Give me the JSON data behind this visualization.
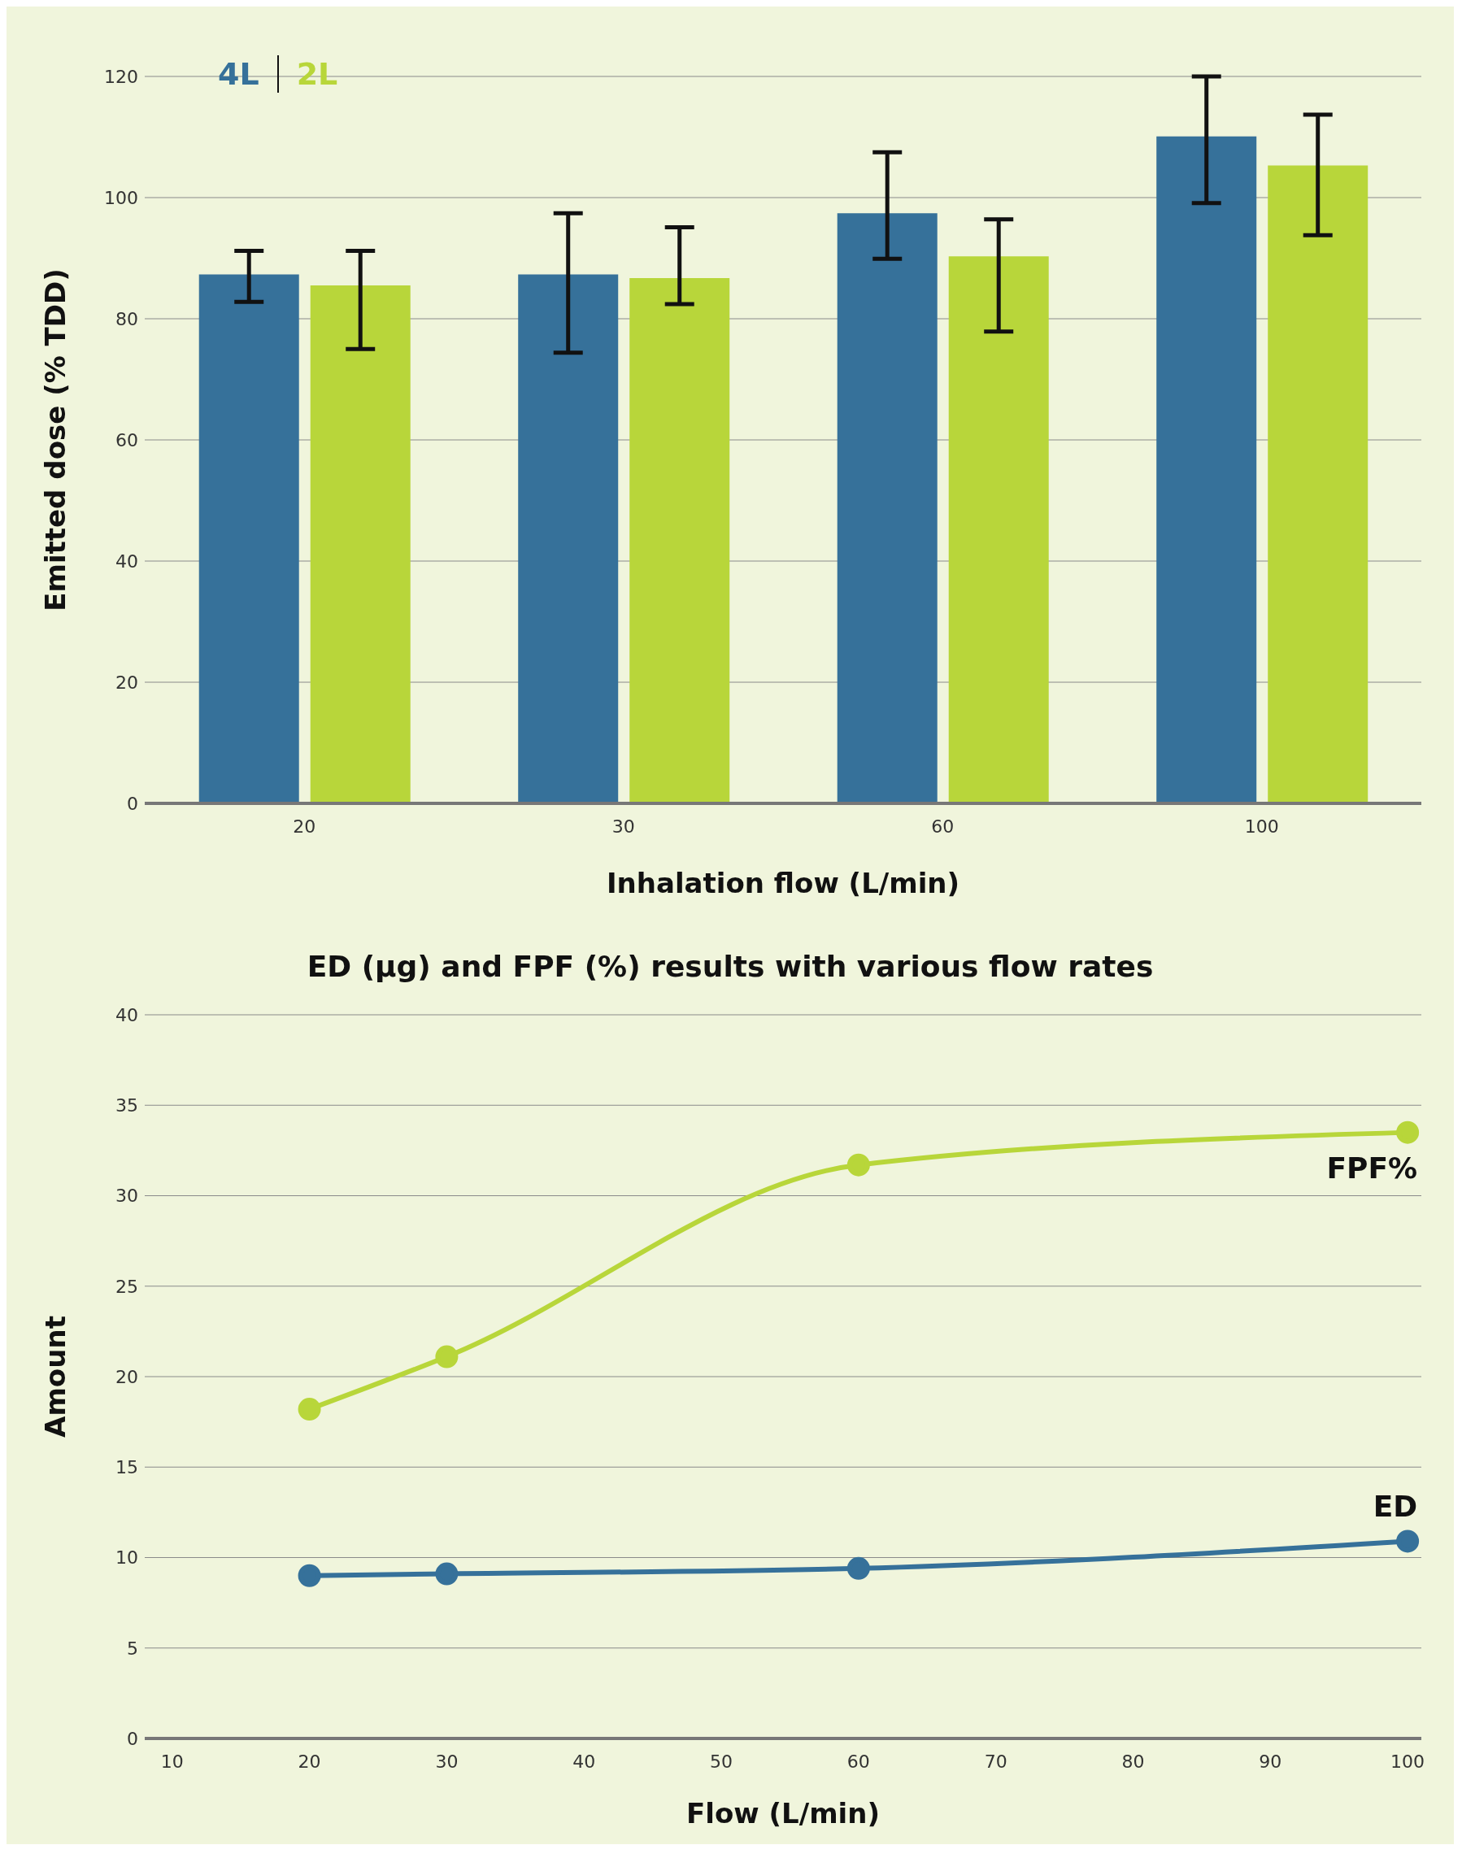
{
  "chart_data": [
    {
      "type": "bar",
      "categories": [
        "20",
        "30",
        "60",
        "100"
      ],
      "xlabel": "Inhalation flow (L/min)",
      "ylabel": "Emitted dose (% TDD)",
      "ylim": [
        0,
        120
      ],
      "yticks": [
        0,
        20,
        40,
        60,
        80,
        100,
        120
      ],
      "grid": "y",
      "legend": "top left",
      "series": [
        {
          "name": "4L",
          "color": "#36719a",
          "values": [
            87.3,
            87.3,
            97.4,
            110.1
          ],
          "errors": [
            [
              82.8,
              91.2
            ],
            [
              74.4,
              97.4
            ],
            [
              89.9,
              107.5
            ],
            [
              99.1,
              120
            ]
          ]
        },
        {
          "name": "2L",
          "color": "#b8d63a",
          "values": [
            85.5,
            86.7,
            90.3,
            105.3
          ],
          "errors": [
            [
              75.0,
              91.2
            ],
            [
              82.4,
              95.1
            ],
            [
              77.9,
              96.4
            ],
            [
              93.8,
              113.7
            ]
          ]
        }
      ]
    },
    {
      "type": "line",
      "title": "ED (µg) and FPF (%) results with various flow rates",
      "xlabel": "Flow (L/min)",
      "ylabel": "Amount",
      "x": [
        20,
        30,
        60,
        100
      ],
      "xlim": [
        8,
        101
      ],
      "xticks": [
        10,
        20,
        30,
        40,
        50,
        60,
        70,
        80,
        90,
        100
      ],
      "ylim": [
        0,
        40
      ],
      "yticks": [
        0,
        5,
        10,
        15,
        20,
        25,
        30,
        35,
        40
      ],
      "grid": "y",
      "legend": false,
      "marker": "circle",
      "line_style": "solid",
      "series": [
        {
          "name": "FPF%",
          "color": "#b8d63a",
          "values": [
            18.2,
            21.1,
            31.7,
            33.5
          ]
        },
        {
          "name": "ED",
          "color": "#36719a",
          "values": [
            9.0,
            9.1,
            9.4,
            10.9
          ]
        }
      ]
    }
  ]
}
